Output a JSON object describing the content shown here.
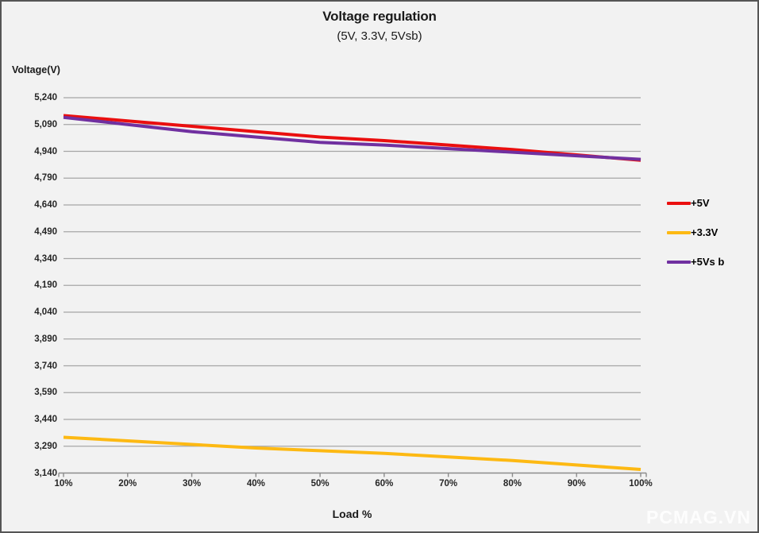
{
  "chart_data": {
    "type": "line",
    "title": "Voltage regulation",
    "subtitle": "(5V, 3.3V, 5Vsb)",
    "xlabel": "Load %",
    "ylabel": "Voltage(V)",
    "x": [
      10,
      20,
      30,
      40,
      50,
      60,
      70,
      80,
      90,
      100
    ],
    "x_tick_labels": [
      "10%",
      "20%",
      "30%",
      "40%",
      "50%",
      "60%",
      "70%",
      "80%",
      "90%",
      "100%"
    ],
    "ylim": [
      3140,
      5240
    ],
    "y_tick_step": 150,
    "y_tick_labels": [
      "5,240",
      "5,090",
      "4,940",
      "4,790",
      "4,640",
      "4,490",
      "4,340",
      "4,190",
      "4,040",
      "3,890",
      "3,740",
      "3,590",
      "3,440",
      "3,290",
      "3,140"
    ],
    "grid": true,
    "legend_position": "right",
    "series": [
      {
        "name": "+5V",
        "color": "#ea0f0f",
        "values": [
          5140,
          5110,
          5080,
          5050,
          5020,
          5000,
          4975,
          4950,
          4920,
          4890
        ]
      },
      {
        "name": "+3.3V",
        "color": "#fdb913",
        "values": [
          3340,
          3320,
          3300,
          3280,
          3265,
          3250,
          3230,
          3210,
          3185,
          3160
        ]
      },
      {
        "name": "+5Vs b",
        "color": "#7030a0",
        "values": [
          5130,
          5090,
          5050,
          5020,
          4990,
          4975,
          4955,
          4935,
          4915,
          4895
        ]
      }
    ]
  },
  "watermark": "PCMAG.VN",
  "colors": {
    "background": "#f2f2f2",
    "grid": "#a6a6a6",
    "axis": "#8c8c8c",
    "text": "#1a1a1a",
    "border": "#555555",
    "watermark": "#ffffff"
  }
}
